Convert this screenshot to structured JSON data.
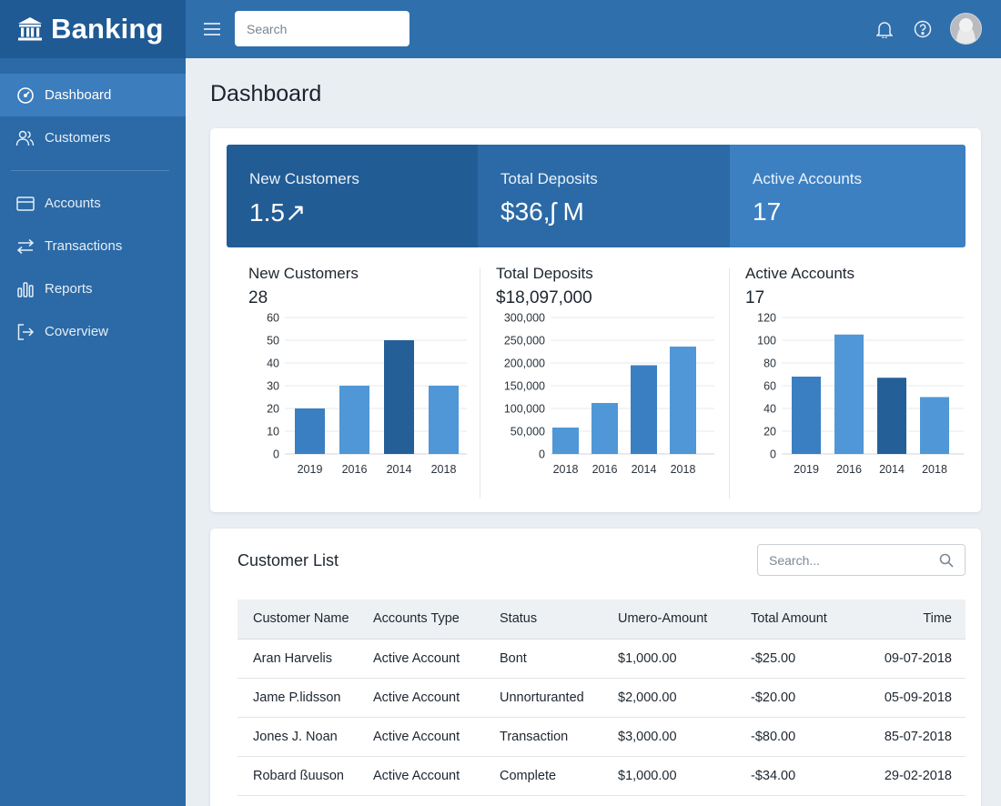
{
  "brand": {
    "name": "Banking",
    "icon": "bank-icon"
  },
  "sidebar": {
    "items": [
      {
        "label": "Dashboard",
        "icon": "gauge-icon",
        "active": true
      },
      {
        "label": "Customers",
        "icon": "users-icon"
      },
      {
        "label": "Accounts",
        "icon": "card-icon"
      },
      {
        "label": "Transactions",
        "icon": "arrows-swap-icon"
      },
      {
        "label": "Reports",
        "icon": "bar-chart-icon"
      },
      {
        "label": "Coverview",
        "icon": "logout-icon"
      }
    ]
  },
  "topbar": {
    "search_placeholder": "Search",
    "icons": [
      "menu-icon",
      "bell-icon",
      "help-icon",
      "avatar"
    ]
  },
  "page": {
    "title": "Dashboard"
  },
  "stats": [
    {
      "label": "New Customers",
      "value": "1.5↗"
    },
    {
      "label": "Total Deposits",
      "value": "$36,ʃ M"
    },
    {
      "label": "Active Accounts",
      "value": "17"
    }
  ],
  "colors": {
    "sidebar": "#2b6aa6",
    "topbar": "#2f6fac",
    "tile_dark": "#225c95",
    "tile_mid": "#2b6aa6",
    "tile_light": "#3d80c2",
    "bar_light": "#4f97d6",
    "bar_mid": "#3a7fc2",
    "bar_dark": "#245f98"
  },
  "minis": [
    {
      "title": "New Customers",
      "value": "28"
    },
    {
      "title": "Total Deposits",
      "value": "$18,097,000"
    },
    {
      "title": "Active Accounts",
      "value": "17"
    }
  ],
  "chart_data": [
    {
      "type": "bar",
      "title": "New Customers",
      "categories": [
        "2019",
        "2016",
        "2014",
        "2018"
      ],
      "values": [
        20,
        30,
        50,
        30
      ],
      "ylim": [
        0,
        60
      ],
      "yticks": [
        "0",
        "10",
        "20",
        "30",
        "40",
        "50",
        "60"
      ],
      "bar_shades": [
        "mid",
        "light",
        "dark",
        "light"
      ],
      "grid": true
    },
    {
      "type": "bar",
      "title": "Total Deposits",
      "categories": [
        "2018",
        "2016",
        "2014",
        "2018"
      ],
      "values": [
        58000,
        112000,
        195000,
        236000
      ],
      "ylim": [
        0,
        300000
      ],
      "yticks": [
        "0",
        "50,000",
        "100,000",
        "150,000",
        "200,000",
        "250,000",
        "300,000"
      ],
      "bar_shades": [
        "light",
        "light",
        "mid",
        "light"
      ],
      "grid": true
    },
    {
      "type": "bar",
      "title": "Active Accounts",
      "categories": [
        "2019",
        "2016",
        "2014",
        "2018"
      ],
      "values": [
        68,
        105,
        67,
        50
      ],
      "ylim": [
        0,
        120
      ],
      "yticks": [
        "0",
        "20",
        "40",
        "60",
        "80",
        "100",
        "120"
      ],
      "bar_shades": [
        "mid",
        "light",
        "dark",
        "light"
      ],
      "grid": true
    }
  ],
  "customer_list": {
    "title": "Customer List",
    "search_placeholder": "Search...",
    "columns": [
      "Customer Name",
      "Accounts Type",
      "Status",
      "Umero-Amount",
      "Total Amount",
      "Time"
    ],
    "rows": [
      [
        "Aran Harvelis",
        "Active Account",
        "Bont",
        "$1,000.00",
        "-$25.00",
        "09-07-2018"
      ],
      [
        "Jame P.lidsson",
        "Active Account",
        "Unnorturanted",
        "$2,000.00",
        "-$20.00",
        "05-09-2018"
      ],
      [
        "Jones J. Noan",
        "Active Account",
        "Transaction",
        "$3,000.00",
        "-$80.00",
        "85-07-2018"
      ],
      [
        "Robard ßuuson",
        "Active Account",
        "Complete",
        "$1,000.00",
        "-$34.00",
        "29-02-2018"
      ]
    ]
  }
}
